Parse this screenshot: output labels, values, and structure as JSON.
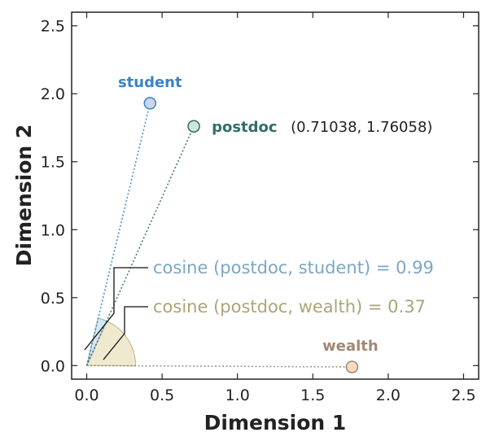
{
  "chart_data": {
    "type": "scatter",
    "xlabel": "Dimension 1",
    "ylabel": "Dimension 2",
    "xlim": [
      -0.1,
      2.6
    ],
    "ylim": [
      -0.1,
      2.6
    ],
    "x_ticks": [
      "0.0",
      "0.5",
      "1.0",
      "1.5",
      "2.0",
      "2.5"
    ],
    "y_ticks": [
      "0.0",
      "0.5",
      "1.0",
      "1.5",
      "2.0",
      "2.5"
    ],
    "grid": false,
    "points": [
      {
        "label": "student",
        "x": 0.42,
        "y": 1.93,
        "color": "#3b82c4",
        "fill": "#c9d6ee"
      },
      {
        "label": "postdoc",
        "x": 0.71038,
        "y": 1.76058,
        "color": "#2f6e6a",
        "fill": "#cfe6dc",
        "coord_text": "(0.71038, 1.76058)"
      },
      {
        "label": "wealth",
        "x": 1.76,
        "y": -0.01,
        "color": "#a08877",
        "fill": "#f7dcc2"
      }
    ],
    "annotations": [
      {
        "text": "cosine (postdoc, student) = 0.99",
        "color": "#7ba7c4"
      },
      {
        "text": "cosine (postdoc, wealth) = 0.37",
        "color": "#a9a678"
      }
    ]
  }
}
